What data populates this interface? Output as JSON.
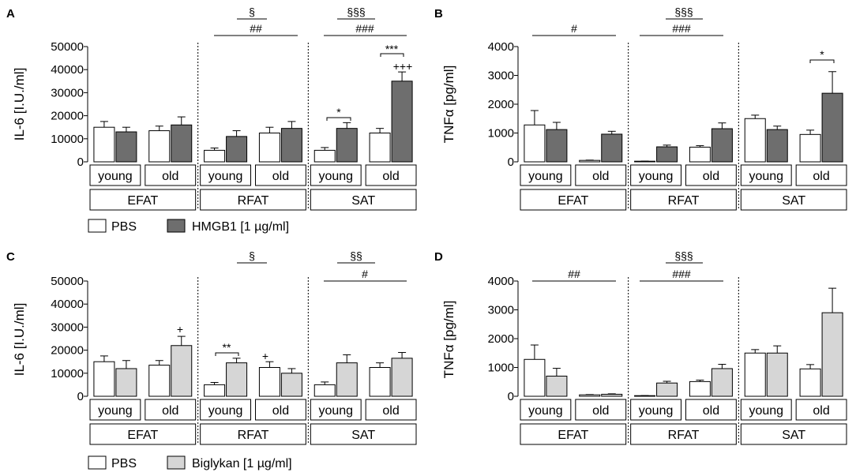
{
  "colors": {
    "pbs": "#ffffff",
    "hmgb1": "#6e6e6e",
    "biglykan": "#d6d6d6",
    "stroke": "#000000"
  },
  "legend_top": {
    "pbs_label": "PBS",
    "treat_label": "HMGB1 [1 µg/ml]"
  },
  "legend_bottom": {
    "pbs_label": "PBS",
    "treat_label": "Biglykan [1 µg/ml]"
  },
  "chart_data": [
    {
      "panel": "A",
      "type": "bar",
      "ylabel": "IL-6 [I.U./ml]",
      "ylim": [
        0,
        50000
      ],
      "yticks": [
        "0",
        "10000",
        "20000",
        "30000",
        "40000",
        "50000"
      ],
      "tissues": [
        "EFAT",
        "RFAT",
        "SAT"
      ],
      "ages": [
        "young",
        "old"
      ],
      "series": [
        {
          "name": "PBS",
          "values": [
            15000,
            13500,
            5000,
            12500,
            5000,
            12500
          ],
          "errors": [
            2500,
            2000,
            1000,
            2500,
            1200,
            2000
          ]
        },
        {
          "name": "HMGB1 [1 µg/ml]",
          "values": [
            13000,
            16000,
            11000,
            14500,
            14500,
            35000
          ],
          "errors": [
            2000,
            3500,
            2500,
            3000,
            2500,
            4000
          ]
        }
      ],
      "stat_labels": [
        "§",
        "##",
        "§§§",
        "###",
        "*",
        "***",
        "+++"
      ]
    },
    {
      "panel": "B",
      "type": "bar",
      "ylabel": "TNFα [pg/ml]",
      "ylim": [
        0,
        4000
      ],
      "yticks": [
        "0",
        "1000",
        "2000",
        "3000",
        "4000"
      ],
      "tissues": [
        "EFAT",
        "RFAT",
        "SAT"
      ],
      "ages": [
        "young",
        "old"
      ],
      "series": [
        {
          "name": "PBS",
          "values": [
            1280,
            50,
            20,
            510,
            1500,
            950
          ],
          "errors": [
            500,
            10,
            5,
            50,
            120,
            150
          ]
        },
        {
          "name": "HMGB1 [1 µg/ml]",
          "values": [
            1120,
            960,
            520,
            1150,
            1120,
            2380
          ],
          "errors": [
            250,
            100,
            60,
            200,
            120,
            750
          ]
        }
      ],
      "stat_labels": [
        "#",
        "§§§",
        "###",
        "*"
      ]
    },
    {
      "panel": "C",
      "type": "bar",
      "ylabel": "IL-6 [I.U./ml]",
      "ylim": [
        0,
        50000
      ],
      "yticks": [
        "0",
        "10000",
        "20000",
        "30000",
        "40000",
        "50000"
      ],
      "tissues": [
        "EFAT",
        "RFAT",
        "SAT"
      ],
      "ages": [
        "young",
        "old"
      ],
      "series": [
        {
          "name": "PBS",
          "values": [
            15000,
            13500,
            5000,
            12500,
            5000,
            12500
          ],
          "errors": [
            2500,
            2000,
            1000,
            2500,
            1200,
            2000
          ]
        },
        {
          "name": "Biglykan [1 µg/ml]",
          "values": [
            12000,
            22000,
            14500,
            10000,
            14500,
            16500
          ],
          "errors": [
            3500,
            4000,
            2000,
            2000,
            3500,
            2500
          ]
        }
      ],
      "stat_labels": [
        "+",
        "§",
        "**",
        "+",
        "§§",
        "#"
      ]
    },
    {
      "panel": "D",
      "type": "bar",
      "ylabel": "TNFα [pg/ml]",
      "ylim": [
        0,
        4000
      ],
      "yticks": [
        "0",
        "1000",
        "2000",
        "3000",
        "4000"
      ],
      "tissues": [
        "EFAT",
        "RFAT",
        "SAT"
      ],
      "ages": [
        "young",
        "old"
      ],
      "series": [
        {
          "name": "PBS",
          "values": [
            1280,
            50,
            20,
            510,
            1500,
            950
          ],
          "errors": [
            500,
            10,
            5,
            50,
            120,
            150
          ]
        },
        {
          "name": "Biglykan [1 µg/ml]",
          "values": [
            700,
            70,
            460,
            960,
            1500,
            2900
          ],
          "errors": [
            270,
            15,
            60,
            150,
            250,
            850
          ]
        }
      ],
      "stat_labels": [
        "##",
        "§§§",
        "###"
      ]
    }
  ]
}
